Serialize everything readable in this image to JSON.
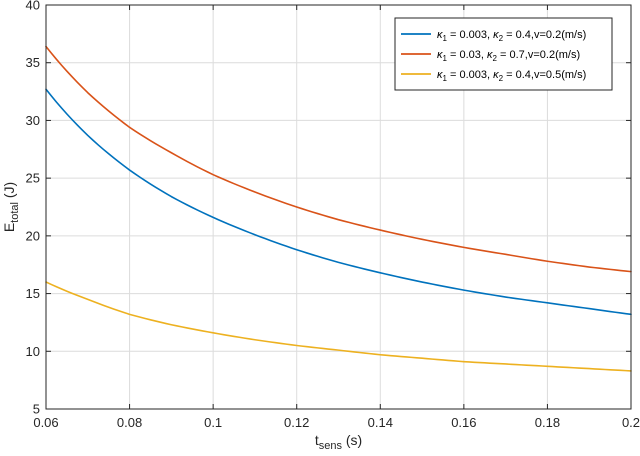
{
  "chart_data": {
    "type": "line",
    "title": "",
    "xlabel": {
      "main": "t",
      "sub": "sens",
      "unit": " (s)"
    },
    "ylabel": {
      "main": "E",
      "sub": "total",
      "unit": "  (J)"
    },
    "xlim": [
      0.06,
      0.2
    ],
    "ylim": [
      5,
      40
    ],
    "xticks": [
      0.06,
      0.08,
      0.1,
      0.12,
      0.14,
      0.16,
      0.18,
      0.2
    ],
    "xtick_labels": [
      "0.06",
      "0.08",
      "0.1",
      "0.12",
      "0.14",
      "0.16",
      "0.18",
      "0.2"
    ],
    "yticks": [
      5,
      10,
      15,
      20,
      25,
      30,
      35,
      40
    ],
    "ytick_labels": [
      "5",
      "10",
      "15",
      "20",
      "25",
      "30",
      "35",
      "40"
    ],
    "grid": true,
    "legend_position": "top-right",
    "x": [
      0.06,
      0.07,
      0.08,
      0.09,
      0.1,
      0.11,
      0.12,
      0.13,
      0.14,
      0.15,
      0.16,
      0.17,
      0.18,
      0.19,
      0.2
    ],
    "series": [
      {
        "name": "κ1 = 0.003, κ2 = 0.4,v=0.2(m/s)",
        "legend": {
          "k1": "0.003",
          "k2": "0.4",
          "v": "v=0.2(m/s)"
        },
        "color": "#0072BD",
        "values": [
          32.7,
          28.7,
          25.7,
          23.4,
          21.6,
          20.1,
          18.8,
          17.7,
          16.8,
          16.0,
          15.3,
          14.7,
          14.2,
          13.7,
          13.2
        ]
      },
      {
        "name": "κ1 = 0.03, κ2 = 0.7,v=0.2(m/s)",
        "legend": {
          "k1": "0.03",
          "k2": "0.7",
          "v": "v=0.2(m/s)"
        },
        "color": "#D95319",
        "values": [
          36.4,
          32.4,
          29.4,
          27.2,
          25.3,
          23.8,
          22.5,
          21.4,
          20.5,
          19.7,
          19.0,
          18.4,
          17.8,
          17.3,
          16.9
        ]
      },
      {
        "name": "κ1 = 0.003, κ2 = 0.4,v=0.5(m/s)",
        "legend": {
          "k1": "0.003",
          "k2": "0.4",
          "v": "v=0.5(m/s)"
        },
        "color": "#EDB120",
        "values": [
          16.0,
          14.5,
          13.2,
          12.3,
          11.6,
          11.0,
          10.5,
          10.1,
          9.7,
          9.4,
          9.1,
          8.9,
          8.7,
          8.5,
          8.3
        ]
      }
    ]
  }
}
